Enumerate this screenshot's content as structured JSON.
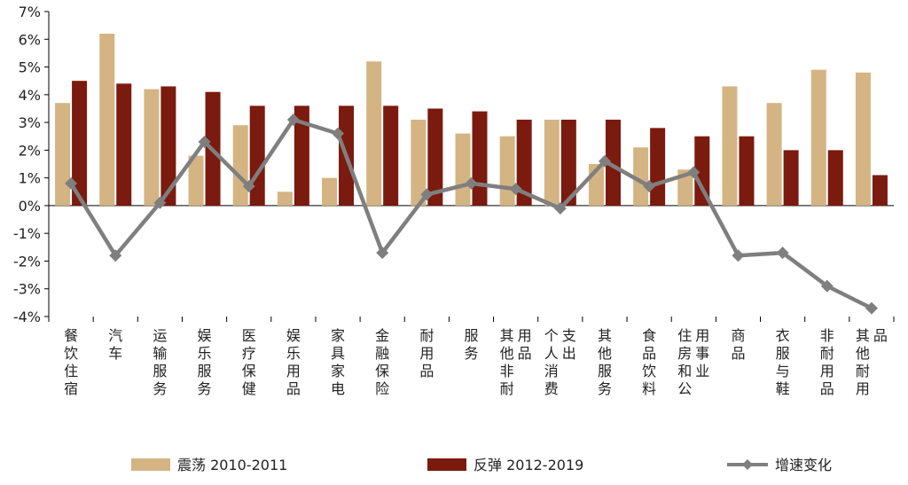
{
  "chart_data": {
    "type": "bar",
    "categories": [
      "餐饮住宿",
      "汽车",
      "运输服务",
      "娱乐服务",
      "医疗保健",
      "娱乐用品",
      "家具家电",
      "金融保险",
      "耐用品",
      "服务",
      "其他非耐用品",
      "个人消费支出",
      "其他服务",
      "食品饮料",
      "住房和公用事业",
      "商品",
      "衣服与鞋",
      "非耐用品",
      "其他耐用品"
    ],
    "ylim": [
      -4,
      7
    ],
    "yticks": [
      -4,
      -3,
      -2,
      -1,
      0,
      1,
      2,
      3,
      4,
      5,
      6,
      7
    ],
    "ytick_labels": [
      "-4%",
      "-3%",
      "-2%",
      "-1%",
      "0%",
      "1%",
      "2%",
      "3%",
      "4%",
      "5%",
      "6%",
      "7%"
    ],
    "series": [
      {
        "name": "震荡 2010-2011",
        "type": "bar",
        "color": "#d4b483",
        "values": [
          3.7,
          6.2,
          4.2,
          1.8,
          2.9,
          0.5,
          1.0,
          5.2,
          3.1,
          2.6,
          2.5,
          3.1,
          1.5,
          2.1,
          1.3,
          4.3,
          3.7,
          4.9,
          4.8
        ]
      },
      {
        "name": "反弹 2012-2019",
        "type": "bar",
        "color": "#7b1a0e",
        "values": [
          4.5,
          4.4,
          4.3,
          4.1,
          3.6,
          3.6,
          3.6,
          3.6,
          3.5,
          3.4,
          3.1,
          3.1,
          3.1,
          2.8,
          2.5,
          2.5,
          2.0,
          2.0,
          1.1
        ]
      },
      {
        "name": "增速变化",
        "type": "line",
        "color": "#7f7f7f",
        "values": [
          0.8,
          -1.8,
          0.1,
          2.3,
          0.7,
          3.1,
          2.6,
          -1.7,
          0.4,
          0.8,
          0.6,
          -0.1,
          1.6,
          0.7,
          1.2,
          -1.8,
          -1.7,
          -2.9,
          -3.7
        ]
      }
    ],
    "legend_position": "bottom",
    "grid": false
  }
}
